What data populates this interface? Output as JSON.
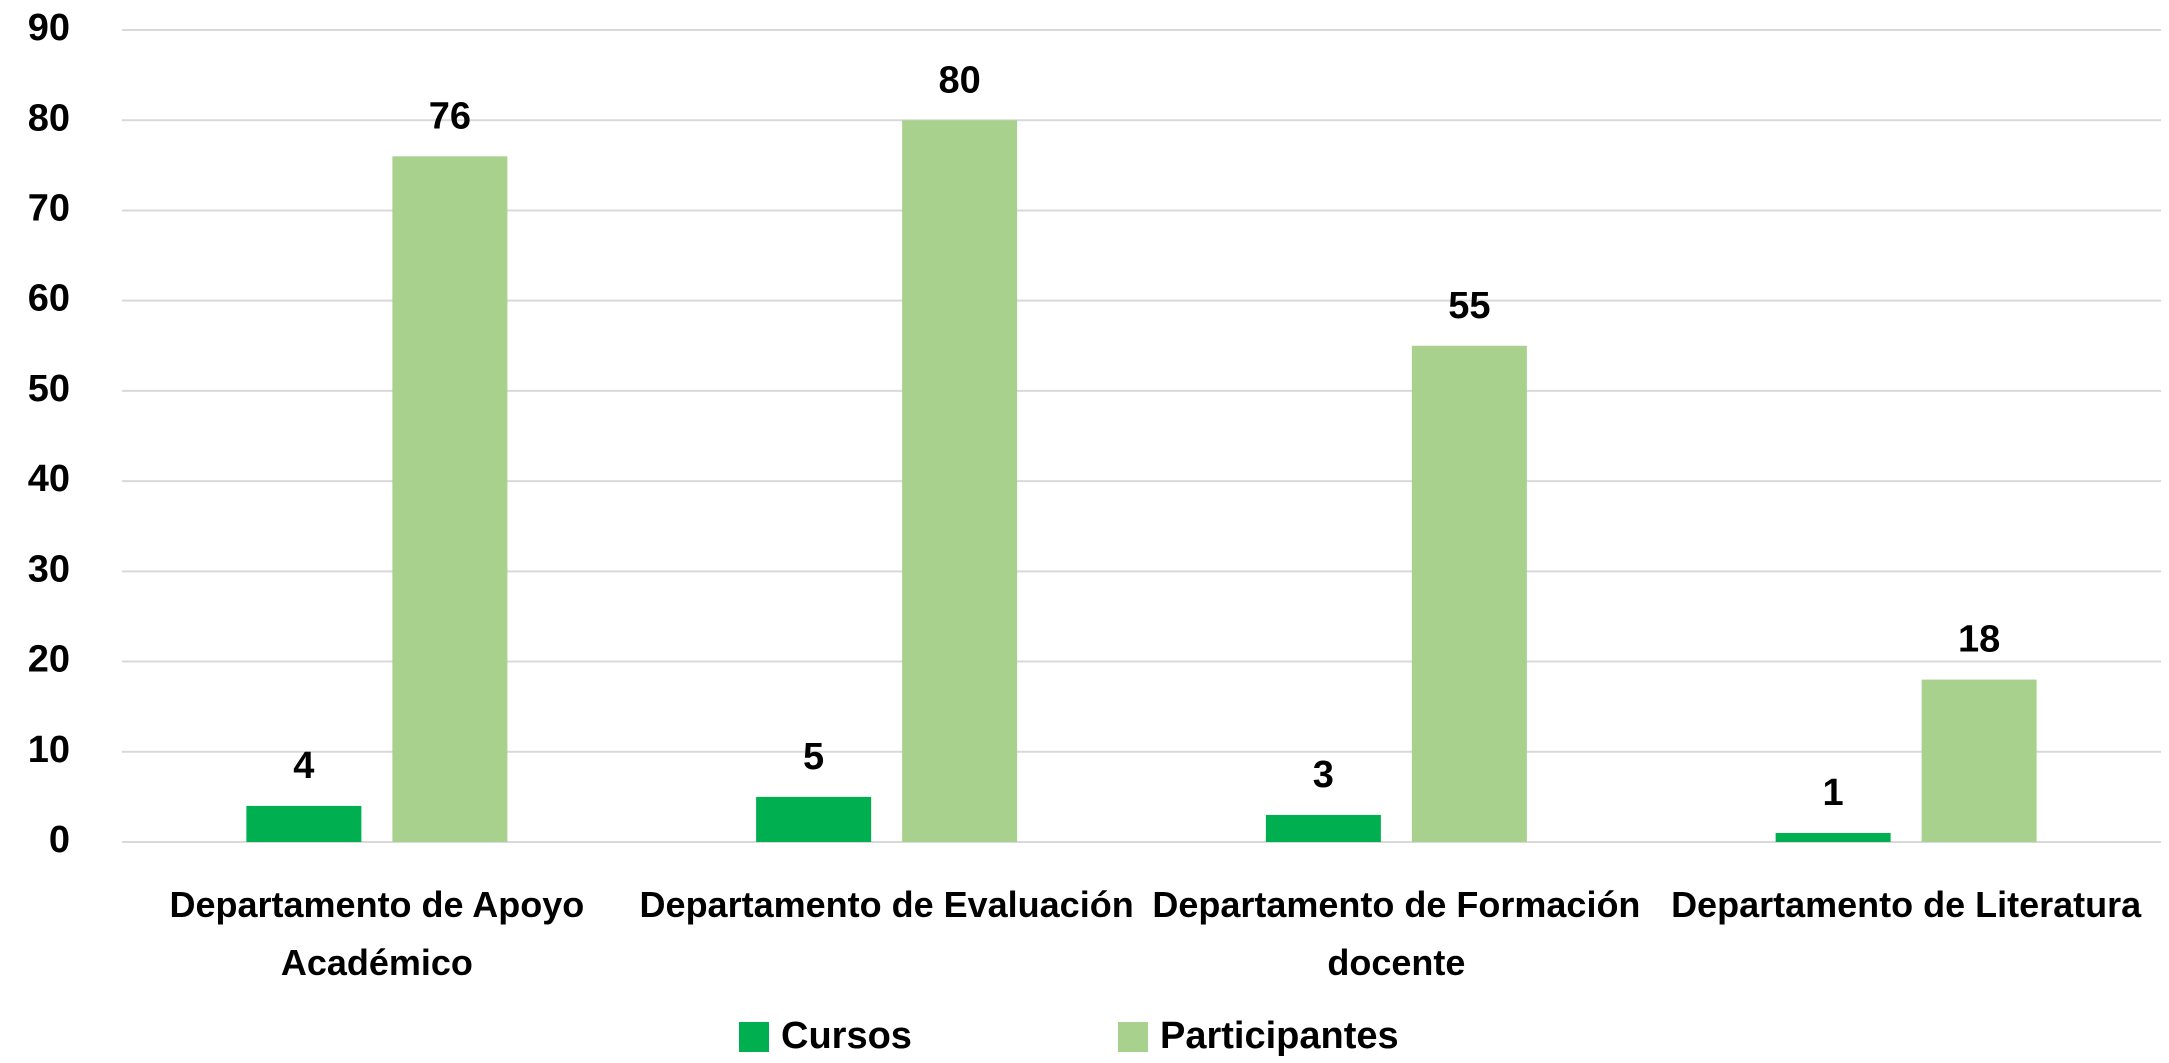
{
  "chart_data": {
    "type": "bar",
    "categories": [
      "Departamento de Apoyo Académico",
      "Departamento de Evaluación",
      "Departamento de Formación docente",
      "Departamento de Literatura"
    ],
    "series": [
      {
        "name": "Cursos",
        "color": "#00b050",
        "values": [
          4,
          5,
          3,
          1
        ]
      },
      {
        "name": "Participantes",
        "color": "#a9d18e",
        "values": [
          76,
          80,
          55,
          18
        ]
      }
    ],
    "ylim": [
      0,
      90
    ],
    "yticks": [
      0,
      10,
      20,
      30,
      40,
      50,
      60,
      70,
      80,
      90
    ],
    "grid": true,
    "legend": "bottom"
  }
}
